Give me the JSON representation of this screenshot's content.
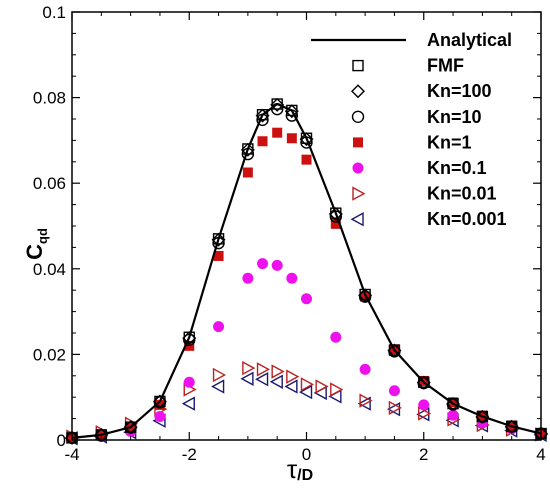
{
  "chart_data": {
    "type": "scatter",
    "title": "",
    "xlabel": {
      "main": "τ",
      "sub": "/D"
    },
    "ylabel": {
      "main": "C",
      "sub": "qd"
    },
    "xlim": [
      -4,
      4
    ],
    "ylim": [
      0,
      0.1
    ],
    "xticks": [
      "-4",
      "-2",
      "0",
      "2",
      "4"
    ],
    "xtick_values": [
      -4,
      -2,
      0,
      2,
      4
    ],
    "yticks": [
      "0",
      "0.02",
      "0.04",
      "0.06",
      "0.08",
      "0.1"
    ],
    "ytick_values": [
      0,
      0.02,
      0.04,
      0.06,
      0.08,
      0.1
    ],
    "grid": false,
    "legend_placement": "top-right",
    "legend": [
      "Analytical",
      "FMF",
      "Kn=100",
      "Kn=10",
      "Kn=1",
      "Kn=0.1",
      "Kn=0.01",
      "Kn=0.001"
    ],
    "series": [
      {
        "name": "Analytical",
        "marker": "line",
        "color": "#000000",
        "x": [
          -4,
          -3.5,
          -3,
          -2.5,
          -2,
          -1.5,
          -1,
          -0.75,
          -0.5,
          -0.25,
          0,
          0.5,
          1,
          1.5,
          2,
          2.5,
          3,
          3.5,
          4
        ],
        "y": [
          0.0005,
          0.0012,
          0.003,
          0.009,
          0.024,
          0.047,
          0.068,
          0.076,
          0.0785,
          0.077,
          0.0705,
          0.053,
          0.034,
          0.021,
          0.0135,
          0.0085,
          0.0055,
          0.0032,
          0.0015
        ]
      },
      {
        "name": "FMF",
        "marker": "open-square",
        "color": "#000000",
        "x": [
          -4,
          -3.5,
          -3,
          -2.5,
          -2,
          -1.5,
          -1,
          -0.75,
          -0.5,
          -0.25,
          0,
          0.5,
          1,
          1.5,
          2,
          2.5,
          3,
          3.5,
          4
        ],
        "y": [
          0.0005,
          0.0012,
          0.003,
          0.009,
          0.024,
          0.047,
          0.068,
          0.076,
          0.0785,
          0.077,
          0.0705,
          0.053,
          0.034,
          0.021,
          0.0135,
          0.0085,
          0.0055,
          0.0032,
          0.0015
        ]
      },
      {
        "name": "Kn=100",
        "marker": "open-diamond",
        "color": "#000000",
        "x": [
          -4,
          -3.5,
          -3,
          -2.5,
          -2,
          -1.5,
          -1,
          -0.75,
          -0.5,
          -0.25,
          0,
          0.5,
          1,
          1.5,
          2,
          2.5,
          3,
          3.5,
          4
        ],
        "y": [
          0.0005,
          0.0012,
          0.003,
          0.009,
          0.0238,
          0.0468,
          0.0678,
          0.0758,
          0.0783,
          0.0768,
          0.0703,
          0.0528,
          0.0338,
          0.0209,
          0.0134,
          0.0084,
          0.0054,
          0.0031,
          0.0015
        ]
      },
      {
        "name": "Kn=10",
        "marker": "open-circle",
        "color": "#000000",
        "x": [
          -4,
          -3.5,
          -3,
          -2.5,
          -2,
          -1.5,
          -1,
          -0.75,
          -0.5,
          -0.25,
          0,
          0.5,
          1,
          1.5,
          2,
          2.5,
          3,
          3.5,
          4
        ],
        "y": [
          0.0005,
          0.0011,
          0.0029,
          0.0088,
          0.0234,
          0.046,
          0.0668,
          0.0748,
          0.0773,
          0.0758,
          0.0695,
          0.0522,
          0.0335,
          0.0207,
          0.0133,
          0.0083,
          0.0054,
          0.0031,
          0.0015
        ]
      },
      {
        "name": "Kn=1",
        "marker": "filled-square",
        "color": "#cc1111",
        "x": [
          -4,
          -3.5,
          -3,
          -2.5,
          -2,
          -1.5,
          -1,
          -0.75,
          -0.5,
          -0.25,
          0,
          0.5,
          1,
          1.5,
          2,
          2.5,
          3,
          3.5,
          4
        ],
        "y": [
          0.0005,
          0.0011,
          0.0028,
          0.0082,
          0.022,
          0.043,
          0.0625,
          0.0698,
          0.0718,
          0.0705,
          0.0655,
          0.0505,
          0.0335,
          0.0212,
          0.0138,
          0.0088,
          0.0057,
          0.0034,
          0.0016
        ]
      },
      {
        "name": "Kn=0.1",
        "marker": "filled-circle",
        "color": "#ee11ee",
        "x": [
          -4,
          -3.5,
          -3,
          -2.5,
          -2,
          -1.5,
          -1,
          -0.75,
          -0.5,
          -0.25,
          0,
          0.5,
          1,
          1.5,
          2,
          2.5,
          3,
          3.5,
          4
        ],
        "y": [
          0.0004,
          0.0008,
          0.002,
          0.0055,
          0.0135,
          0.0265,
          0.0378,
          0.0412,
          0.0408,
          0.0378,
          0.033,
          0.024,
          0.0165,
          0.0115,
          0.0082,
          0.0058,
          0.004,
          0.0026,
          0.0014
        ]
      },
      {
        "name": "Kn=0.01",
        "marker": "open-triangle-right",
        "color": "#bb2222",
        "x": [
          -4,
          -3.5,
          -3,
          -2.5,
          -2,
          -1.5,
          -1,
          -0.75,
          -0.5,
          -0.25,
          0,
          0.25,
          0.5,
          1,
          1.5,
          2,
          2.5,
          3,
          3.5,
          4
        ],
        "y": [
          0.0008,
          0.0018,
          0.0038,
          0.0072,
          0.0118,
          0.0152,
          0.0168,
          0.0165,
          0.016,
          0.0148,
          0.013,
          0.0125,
          0.0118,
          0.0092,
          0.0075,
          0.0062,
          0.0048,
          0.0035,
          0.0024,
          0.0013
        ]
      },
      {
        "name": "Kn=0.001",
        "marker": "open-triangle-left",
        "color": "#1a1a6e",
        "x": [
          -4,
          -3.5,
          -3,
          -2.5,
          -2,
          -1.5,
          -1,
          -0.75,
          -0.5,
          -0.25,
          0,
          0.25,
          0.5,
          1,
          1.5,
          2,
          2.5,
          3,
          3.5,
          4
        ],
        "y": [
          0.0004,
          0.0008,
          0.0018,
          0.0045,
          0.0085,
          0.0125,
          0.0143,
          0.0142,
          0.0136,
          0.0125,
          0.0112,
          0.011,
          0.0102,
          0.0085,
          0.0072,
          0.006,
          0.0046,
          0.0034,
          0.0022,
          0.0012
        ]
      }
    ]
  }
}
